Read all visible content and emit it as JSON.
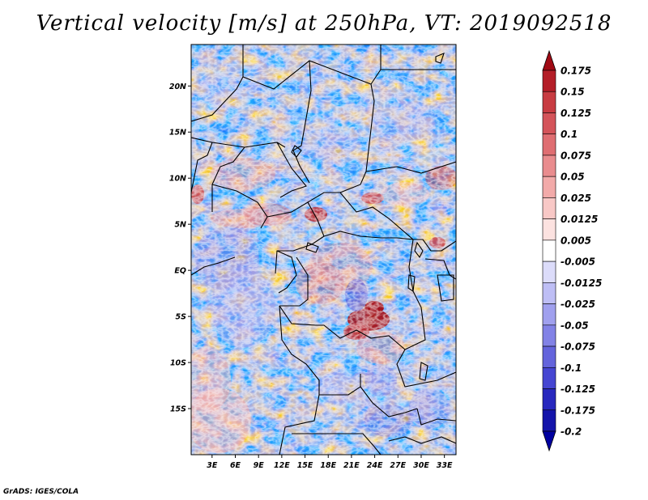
{
  "title": "Vertical velocity [m/s] at 250hPa, VT: 2019092518",
  "credit": "GrADS: IGES/COLA",
  "map": {
    "lat_labels": [
      {
        "label": "20N",
        "lat": 20
      },
      {
        "label": "15N",
        "lat": 15
      },
      {
        "label": "10N",
        "lat": 10
      },
      {
        "label": "5N",
        "lat": 5
      },
      {
        "label": "EQ",
        "lat": 0
      },
      {
        "label": "5S",
        "lat": -5
      },
      {
        "label": "10S",
        "lat": -10
      },
      {
        "label": "15S",
        "lat": -15
      }
    ],
    "lon_labels": [
      {
        "label": "3E",
        "lon": 3
      },
      {
        "label": "6E",
        "lon": 6
      },
      {
        "label": "9E",
        "lon": 9
      },
      {
        "label": "12E",
        "lon": 12
      },
      {
        "label": "15E",
        "lon": 15
      },
      {
        "label": "18E",
        "lon": 18
      },
      {
        "label": "21E",
        "lon": 21
      },
      {
        "label": "24E",
        "lon": 24
      },
      {
        "label": "27E",
        "lon": 27
      },
      {
        "label": "30E",
        "lon": 30
      },
      {
        "label": "33E",
        "lon": 33
      }
    ],
    "lon_range": [
      0.3,
      34.5
    ],
    "lat_range": [
      -20,
      24.5
    ]
  },
  "colorbar": {
    "levels": [
      "0.175",
      "0.15",
      "0.125",
      "0.1",
      "0.075",
      "0.05",
      "0.025",
      "0.0125",
      "0.005",
      "-0.005",
      "-0.0125",
      "-0.025",
      "-0.05",
      "-0.075",
      "-0.1",
      "-0.125",
      "-0.175",
      "-0.2"
    ],
    "colors": [
      "#a00a14",
      "#b41e28",
      "#c83c42",
      "#d4545a",
      "#df6e72",
      "#e98c8e",
      "#f2aaa9",
      "#f8c8c6",
      "#fce2e0",
      "#ffffff",
      "#dcdcfa",
      "#bebef5",
      "#a0a0ee",
      "#8282e6",
      "#6464dc",
      "#4646d2",
      "#2828be",
      "#1414aa",
      "#0000a0"
    ],
    "top_color": "#a00a14",
    "bottom_color": "#0000a0"
  }
}
